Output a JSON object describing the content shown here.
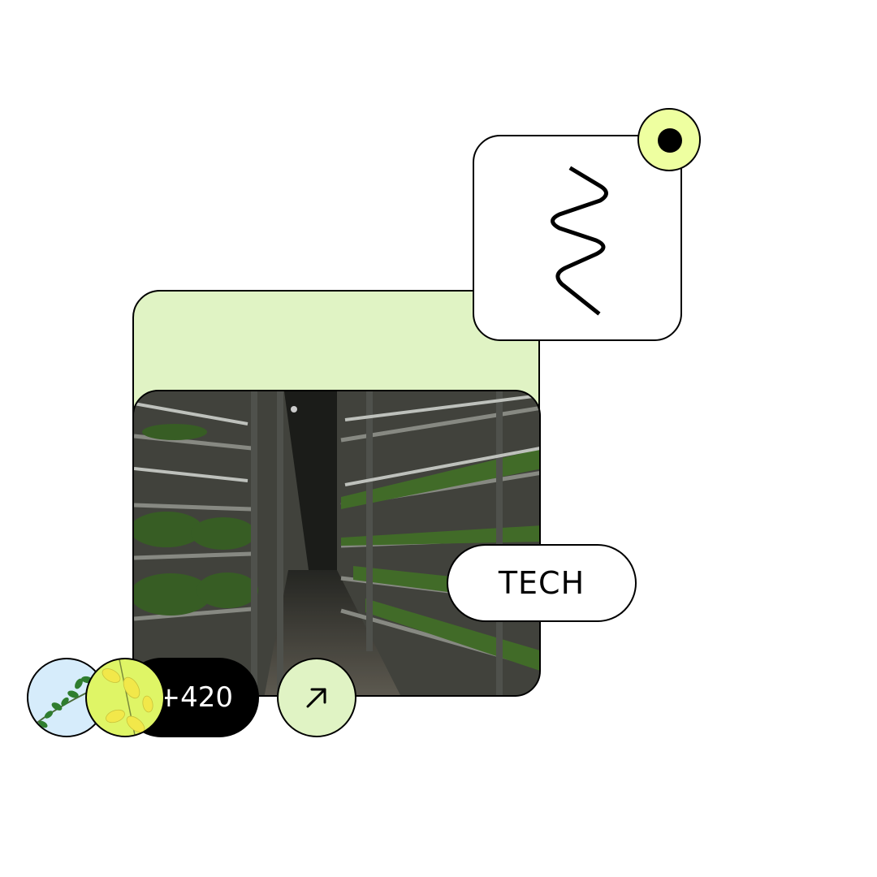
{
  "tag": {
    "label": "TECH"
  },
  "members": {
    "extra_count": "+420"
  },
  "icons": {
    "wave": "wave-icon",
    "status_dot": "dot-icon",
    "arrow": "arrow-up-right-icon"
  },
  "colors": {
    "card_green": "#e0f3c4",
    "accent_lime": "#eeffa0",
    "avatar_blue": "#d6ecfb",
    "avatar_yellow": "#dff566",
    "pill_black": "#000000"
  }
}
